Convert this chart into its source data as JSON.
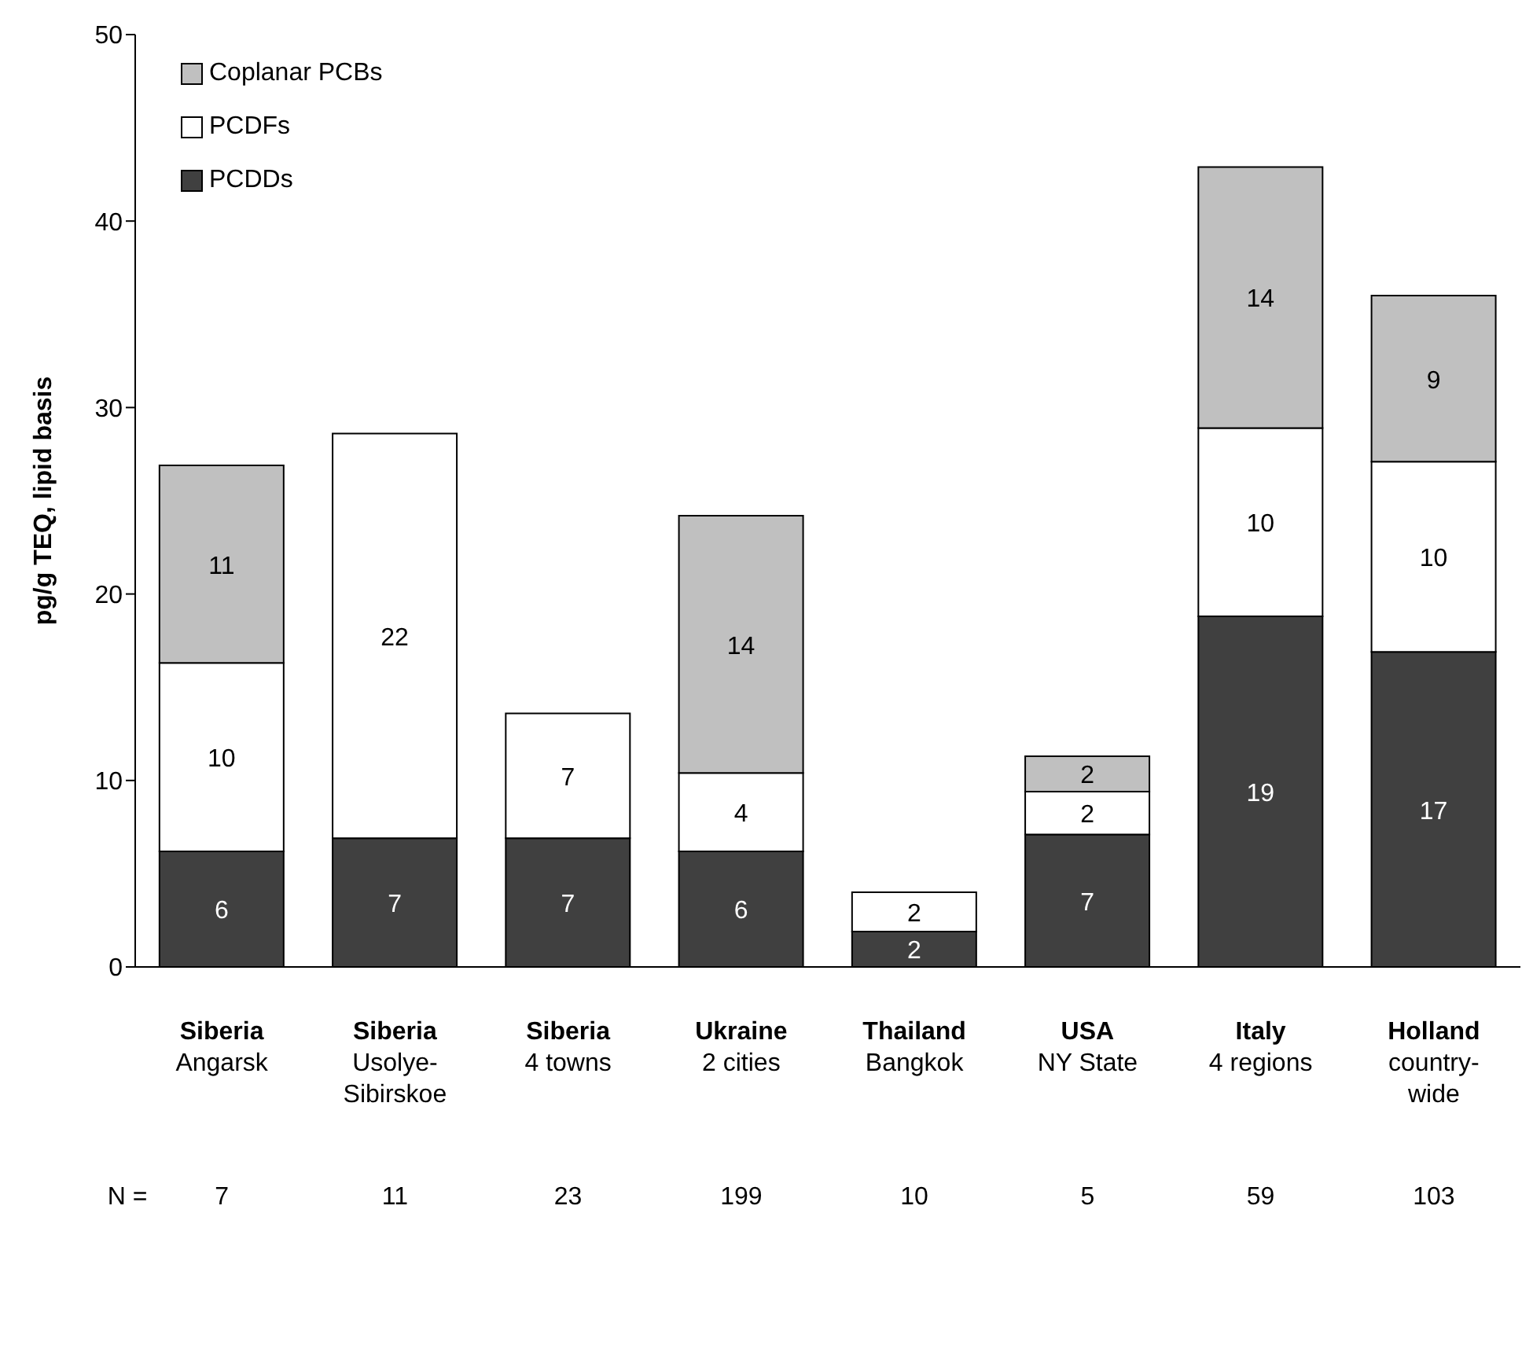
{
  "chart_data": {
    "type": "bar",
    "stacked": true,
    "ylabel": "pg/g TEQ, lipid basis",
    "categories": [
      "Siberia\nAngarsk",
      "Siberia\nUsolye-\nSibirskoe",
      "Siberia\n4 towns",
      "Ukraine\n2 cities",
      "Thailand\nBangkok",
      "USA\nNY State",
      "Italy\n4 regions",
      "Holland\ncountry-\nwide"
    ],
    "series": [
      {
        "name": "PCDDs",
        "color": "#404040",
        "values": [
          6.2,
          6.9,
          6.9,
          6.2,
          1.9,
          7.1,
          18.8,
          16.9
        ],
        "value_labels": [
          "6",
          "7",
          "7",
          "6",
          "2",
          "7",
          "19",
          "17"
        ]
      },
      {
        "name": "PCDFs",
        "color": "#ffffff",
        "values": [
          10.1,
          21.7,
          6.7,
          4.2,
          2.1,
          2.3,
          10.1,
          10.2
        ],
        "value_labels": [
          "10",
          "22",
          "7",
          "4",
          "2",
          "2",
          "10",
          "10"
        ]
      },
      {
        "name": "Coplanar PCBs",
        "color": "#c0c0c0",
        "values": [
          10.6,
          null,
          null,
          13.8,
          null,
          1.9,
          14.0,
          8.9
        ],
        "value_labels": [
          "11",
          null,
          null,
          "14",
          null,
          "2",
          "14",
          "9"
        ]
      }
    ],
    "ylim": [
      0,
      50
    ],
    "yticks": [
      0,
      10,
      20,
      30,
      40,
      50
    ],
    "grid": false,
    "legend": "top left",
    "annotations": [
      "N =",
      "7",
      "11",
      "23",
      "199",
      "10",
      "5",
      "59",
      "103"
    ]
  }
}
